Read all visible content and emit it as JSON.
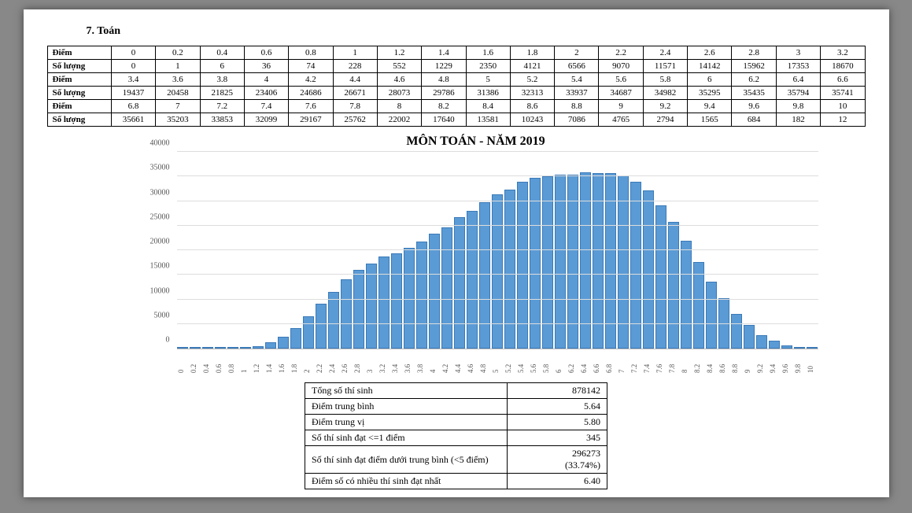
{
  "heading": "7.  Toán",
  "freq_table": {
    "row_label_score": "Điểm",
    "row_label_count": "Số lượng",
    "rows": [
      {
        "scores": [
          "0",
          "0.2",
          "0.4",
          "0.6",
          "0.8",
          "1",
          "1.2",
          "1.4",
          "1.6",
          "1.8",
          "2",
          "2.2",
          "2.4",
          "2.6",
          "2.8",
          "3",
          "3.2"
        ],
        "counts": [
          "0",
          "1",
          "6",
          "36",
          "74",
          "228",
          "552",
          "1229",
          "2350",
          "4121",
          "6566",
          "9070",
          "11571",
          "14142",
          "15962",
          "17353",
          "18670"
        ]
      },
      {
        "scores": [
          "3.4",
          "3.6",
          "3.8",
          "4",
          "4.2",
          "4.4",
          "4.6",
          "4.8",
          "5",
          "5.2",
          "5.4",
          "5.6",
          "5.8",
          "6",
          "6.2",
          "6.4",
          "6.6"
        ],
        "counts": [
          "19437",
          "20458",
          "21825",
          "23406",
          "24686",
          "26671",
          "28073",
          "29786",
          "31386",
          "32313",
          "33937",
          "34687",
          "34982",
          "35295",
          "35435",
          "35794",
          "35741"
        ]
      },
      {
        "scores": [
          "6.8",
          "7",
          "7.2",
          "7.4",
          "7.6",
          "7.8",
          "8",
          "8.2",
          "8.4",
          "8.6",
          "8.8",
          "9",
          "9.2",
          "9.4",
          "9.6",
          "9.8",
          "10"
        ],
        "counts": [
          "35661",
          "35203",
          "33853",
          "32099",
          "29167",
          "25762",
          "22002",
          "17640",
          "13581",
          "10243",
          "7086",
          "4765",
          "2794",
          "1565",
          "684",
          "182",
          "12"
        ]
      }
    ]
  },
  "chart": {
    "type": "bar",
    "title": "MÔN TOÁN - NĂM 2019",
    "categories": [
      "0",
      "0.2",
      "0.4",
      "0.6",
      "0.8",
      "1",
      "1.2",
      "1.4",
      "1.6",
      "1.8",
      "2",
      "2.2",
      "2.4",
      "2.6",
      "2.8",
      "3",
      "3.2",
      "3.4",
      "3.6",
      "3.8",
      "4",
      "4.2",
      "4.4",
      "4.6",
      "4.8",
      "5",
      "5.2",
      "5.4",
      "5.6",
      "5.8",
      "6",
      "6.2",
      "6.4",
      "6.6",
      "6.8",
      "7",
      "7.2",
      "7.4",
      "7.6",
      "7.8",
      "8",
      "8.2",
      "8.4",
      "8.6",
      "8.8",
      "9",
      "9.2",
      "9.4",
      "9.6",
      "9.8",
      "10"
    ],
    "values": [
      0,
      1,
      6,
      36,
      74,
      228,
      552,
      1229,
      2350,
      4121,
      6566,
      9070,
      11571,
      14142,
      15962,
      17353,
      18670,
      19437,
      20458,
      21825,
      23406,
      24686,
      26671,
      28073,
      29786,
      31386,
      32313,
      33937,
      34687,
      34982,
      35295,
      35435,
      35794,
      35741,
      35661,
      35203,
      33853,
      32099,
      29167,
      25762,
      22002,
      17640,
      13581,
      10243,
      7086,
      4765,
      2794,
      1565,
      684,
      182,
      12
    ],
    "ylim": [
      0,
      40000
    ],
    "ytick_step": 5000,
    "bar_fill": "#5b9bd5",
    "bar_border": "#3a7ab8",
    "grid_color": "#dddddd",
    "axis_color": "#bbbbbb",
    "background_color": "#ffffff",
    "title_fontsize": 16,
    "label_fontsize": 10,
    "xlabel_fontsize": 9,
    "xlabel_rotation": 90
  },
  "summary": {
    "rows": [
      {
        "label": "Tổng số thí sinh",
        "value": "878142"
      },
      {
        "label": "Điểm trung bình",
        "value": "5.64"
      },
      {
        "label": "Điểm trung vị",
        "value": "5.80"
      },
      {
        "label": "Số thí sinh đạt <=1 điểm",
        "value": "345"
      },
      {
        "label": "Số thí sinh đạt điểm dưới trung bình (<5 điểm)",
        "value": "296273\n(33.74%)"
      },
      {
        "label": "Điểm số có nhiều thí sinh đạt nhất",
        "value": "6.40"
      }
    ]
  }
}
